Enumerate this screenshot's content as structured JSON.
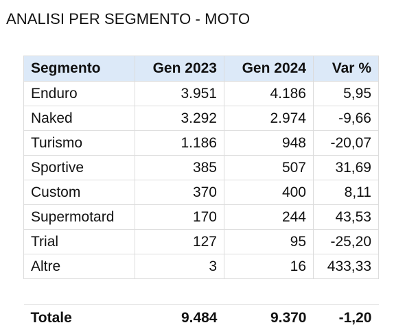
{
  "title": "ANALISI PER SEGMENTO - MOTO",
  "table": {
    "headers": [
      "Segmento",
      "Gen 2023",
      "Gen 2024",
      "Var %"
    ],
    "rows": [
      [
        "Enduro",
        "3.951",
        "4.186",
        "5,95"
      ],
      [
        "Naked",
        "3.292",
        "2.974",
        "-9,66"
      ],
      [
        "Turismo",
        "1.186",
        "948",
        "-20,07"
      ],
      [
        "Sportive",
        "385",
        "507",
        "31,69"
      ],
      [
        "Custom",
        "370",
        "400",
        "8,11"
      ],
      [
        "Supermotard",
        "170",
        "244",
        "43,53"
      ],
      [
        "Trial",
        "127",
        "95",
        "-25,20"
      ],
      [
        "Altre",
        "3",
        "16",
        "433,33"
      ]
    ],
    "total": [
      "Totale",
      "9.484",
      "9.370",
      "-1,20"
    ]
  },
  "colors": {
    "header_background": "#dce9f8",
    "grid_line": "#dcdcdc",
    "text": "#111111"
  }
}
